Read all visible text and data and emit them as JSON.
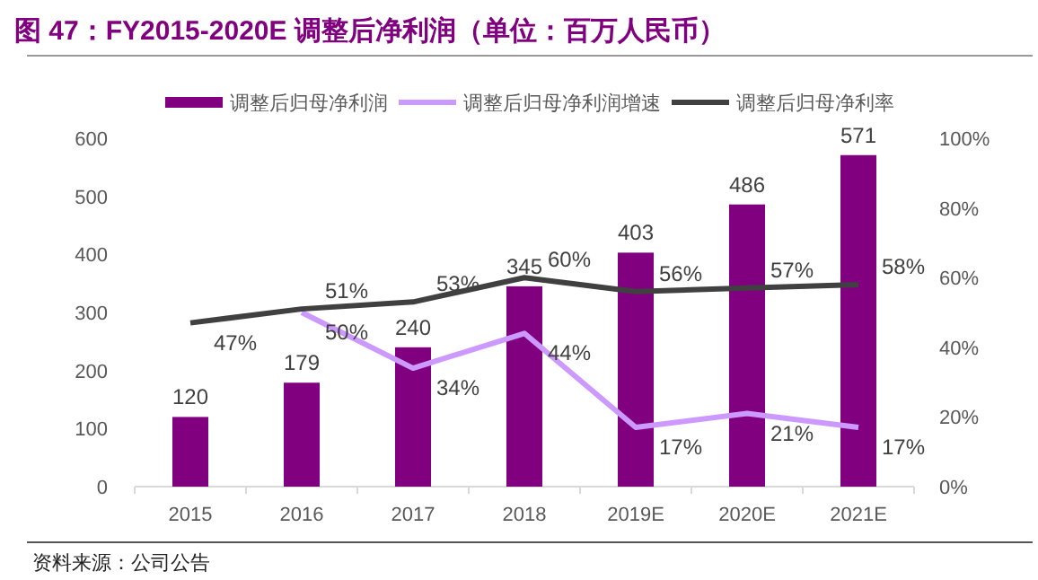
{
  "chart_data": {
    "type": "bar",
    "title": "图 47：FY2015-2020E 调整后净利润（单位：百万人民币）",
    "categories": [
      "2015",
      "2016",
      "2017",
      "2018",
      "2019E",
      "2020E",
      "2021E"
    ],
    "series": [
      {
        "name": "调整后归母净利润",
        "color": "#800080",
        "values": [
          120,
          179,
          240,
          345,
          403,
          486,
          571
        ],
        "value_labels": [
          "120",
          "179",
          "240",
          "345",
          "403",
          "486",
          "571"
        ]
      },
      {
        "name": "调整后归母净利润增速",
        "type": "line",
        "axis": "y2",
        "color": "#cc99ff",
        "values": [
          null,
          50,
          34,
          44,
          17,
          21,
          17
        ],
        "value_labels": [
          null,
          "50%",
          "34%",
          "44%",
          "17%",
          "21%",
          "17%"
        ]
      },
      {
        "name": "调整后归母净利率",
        "type": "line",
        "axis": "y2",
        "color": "#404040",
        "values": [
          47,
          51,
          53,
          60,
          56,
          57,
          58
        ],
        "value_labels": [
          "47%",
          "51%",
          "53%",
          "60%",
          "56%",
          "57%",
          "58%"
        ]
      }
    ],
    "ylim": [
      0,
      600
    ],
    "yticks": [
      0,
      100,
      200,
      300,
      400,
      500,
      600
    ],
    "y2lim": [
      0,
      100
    ],
    "y2ticks": [
      {
        "value": 0,
        "label": "0%"
      },
      {
        "value": 20,
        "label": "20%"
      },
      {
        "value": 40,
        "label": "40%"
      },
      {
        "value": 60,
        "label": "60%"
      },
      {
        "value": 80,
        "label": "80%"
      },
      {
        "value": 100,
        "label": "100%"
      }
    ],
    "grid": false,
    "legend": "top",
    "marker": "none",
    "annotations": [
      "资料来源：公司公告"
    ]
  }
}
